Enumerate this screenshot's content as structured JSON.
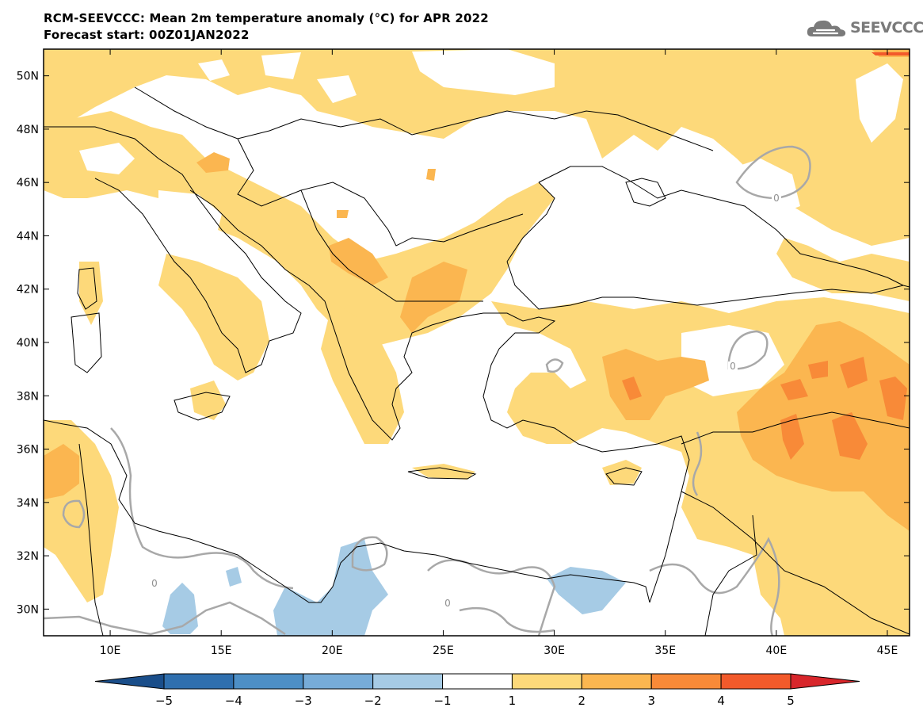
{
  "header": {
    "title": "RCM-SEEVCCC: Mean 2m temperature anomaly (°C) for APR 2022",
    "subtitle": "Forecast start: 00Z01JAN2022"
  },
  "logo": {
    "text": "SEEVCCC",
    "icon": "cloud-icon"
  },
  "map": {
    "lon_range": [
      7,
      46
    ],
    "lat_range": [
      29,
      51
    ],
    "x_ticks": [
      "10E",
      "15E",
      "20E",
      "25E",
      "30E",
      "35E",
      "40E",
      "45E"
    ],
    "x_tick_values": [
      10,
      15,
      20,
      25,
      30,
      35,
      40,
      45
    ],
    "y_ticks": [
      "50N",
      "48N",
      "46N",
      "44N",
      "42N",
      "40N",
      "38N",
      "36N",
      "34N",
      "32N",
      "30N"
    ],
    "y_tick_values": [
      50,
      48,
      46,
      44,
      42,
      40,
      38,
      36,
      34,
      32,
      30
    ],
    "contour_labels": [
      "0",
      "0",
      "0",
      "0"
    ]
  },
  "colorbar": {
    "labels": [
      "−5",
      "−4",
      "−3",
      "−2",
      "−1",
      "1",
      "2",
      "3",
      "4",
      "5"
    ],
    "colors": [
      "#1a4e8a",
      "#2f6fae",
      "#4d8fc6",
      "#77acd8",
      "#a6cbe5",
      "#ffffff",
      "#fdd97a",
      "#fbb650",
      "#f88a38",
      "#f25a2b",
      "#d8262b"
    ]
  }
}
